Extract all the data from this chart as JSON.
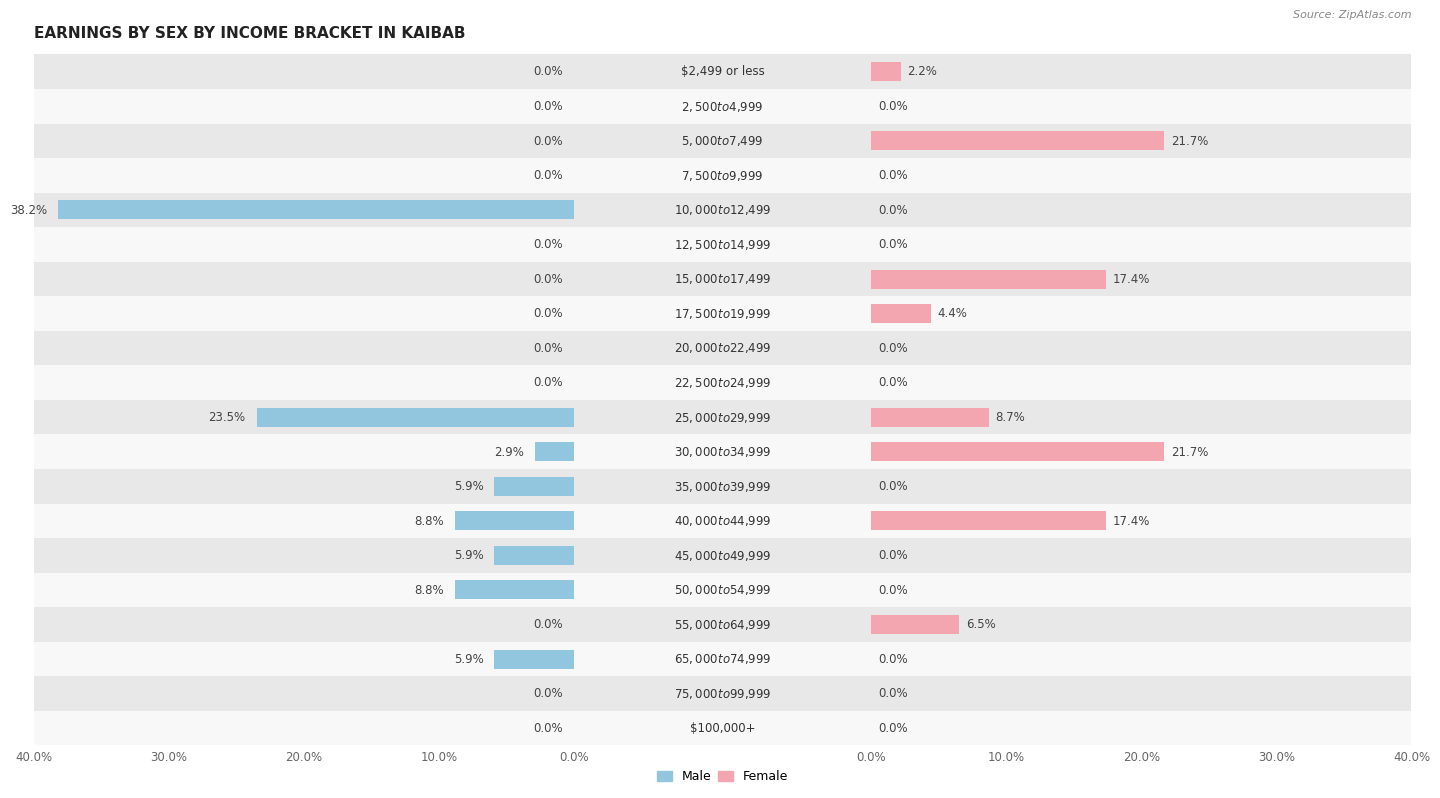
{
  "title": "EARNINGS BY SEX BY INCOME BRACKET IN KAIBAB",
  "source": "Source: ZipAtlas.com",
  "categories": [
    "$2,499 or less",
    "$2,500 to $4,999",
    "$5,000 to $7,499",
    "$7,500 to $9,999",
    "$10,000 to $12,499",
    "$12,500 to $14,999",
    "$15,000 to $17,499",
    "$17,500 to $19,999",
    "$20,000 to $22,499",
    "$22,500 to $24,999",
    "$25,000 to $29,999",
    "$30,000 to $34,999",
    "$35,000 to $39,999",
    "$40,000 to $44,999",
    "$45,000 to $49,999",
    "$50,000 to $54,999",
    "$55,000 to $64,999",
    "$65,000 to $74,999",
    "$75,000 to $99,999",
    "$100,000+"
  ],
  "male": [
    0.0,
    0.0,
    0.0,
    0.0,
    38.2,
    0.0,
    0.0,
    0.0,
    0.0,
    0.0,
    23.5,
    2.9,
    5.9,
    8.8,
    5.9,
    8.8,
    0.0,
    5.9,
    0.0,
    0.0
  ],
  "female": [
    2.2,
    0.0,
    21.7,
    0.0,
    0.0,
    0.0,
    17.4,
    4.4,
    0.0,
    0.0,
    8.7,
    21.7,
    0.0,
    17.4,
    0.0,
    0.0,
    6.5,
    0.0,
    0.0,
    0.0
  ],
  "male_color": "#92c5de",
  "female_color": "#f4a6b0",
  "male_color_zero": "#b8d9ec",
  "female_color_zero": "#f9cdd4",
  "bg_row_even": "#e8e8e8",
  "bg_row_odd": "#f8f8f8",
  "axis_limit": 40.0,
  "bar_height": 0.55,
  "title_fontsize": 11,
  "label_fontsize": 8.5,
  "tick_fontsize": 8.5,
  "category_fontsize": 8.5,
  "min_bar_display": 0.3
}
